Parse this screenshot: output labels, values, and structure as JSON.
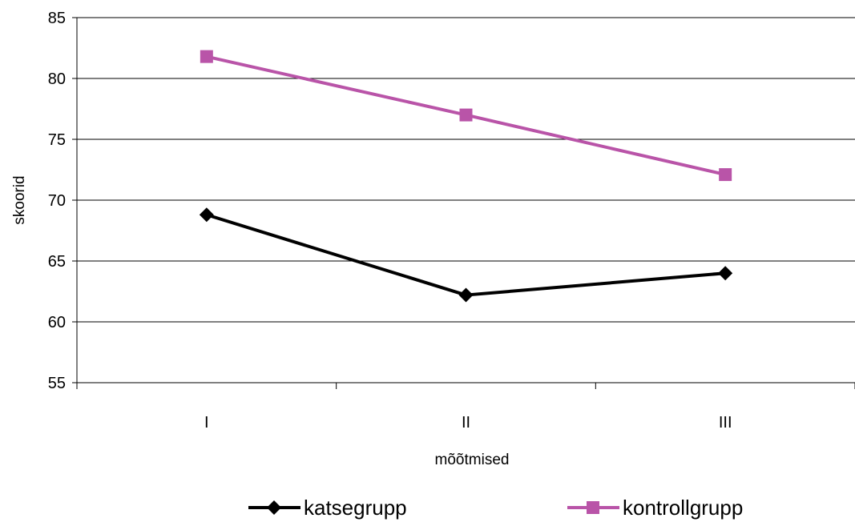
{
  "chart_data": {
    "type": "line",
    "title": "",
    "xlabel": "mõõtmised",
    "ylabel": "skoorid",
    "categories": [
      "I",
      "II",
      "III"
    ],
    "ylim": [
      55,
      85
    ],
    "yticks": [
      55,
      60,
      65,
      70,
      75,
      80,
      85
    ],
    "grid": true,
    "legend_position": "bottom",
    "series": [
      {
        "name": "katsegrupp",
        "values": [
          68.8,
          62.2,
          64.0
        ],
        "color": "#000000",
        "marker": "diamond"
      },
      {
        "name": "kontrollgrupp",
        "values": [
          81.8,
          77.0,
          72.1
        ],
        "color": "#B954A8",
        "marker": "square"
      }
    ]
  }
}
